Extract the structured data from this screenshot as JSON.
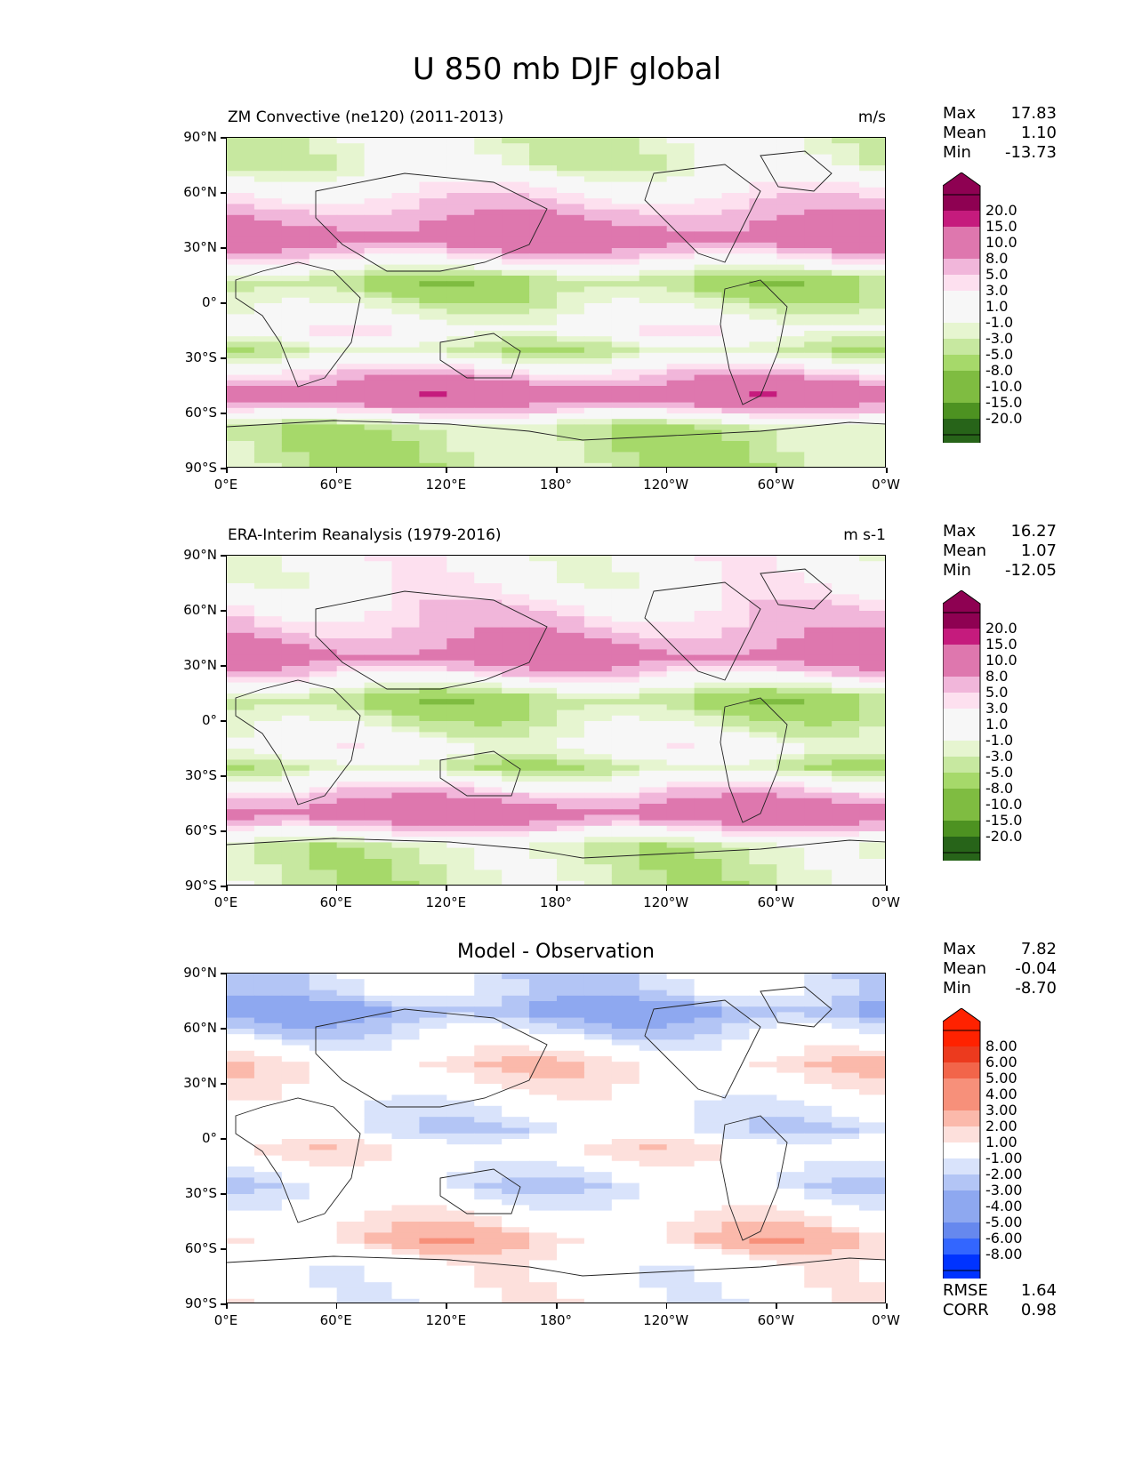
{
  "title": "U 850 mb DJF global",
  "axes": {
    "yticks": [
      "90°N",
      "60°N",
      "30°N",
      "0°",
      "30°S",
      "60°S",
      "90°S"
    ],
    "xticks": [
      "0°E",
      "60°E",
      "120°E",
      "180°",
      "120°W",
      "60°W",
      "0°W"
    ]
  },
  "colors": {
    "prgn": [
      "#276419",
      "#4d9221",
      "#7fbc41",
      "#a6d96a",
      "#c7e8a0",
      "#e6f5d0",
      "#f7f7f7",
      "#fde0ef",
      "#f1b6da",
      "#de77ae",
      "#c51b7d",
      "#8e0152"
    ],
    "diff": [
      "#0033ff",
      "#3366ff",
      "#6688ee",
      "#8ea8f0",
      "#b3c5f5",
      "#d9e3fb",
      "#ffffff",
      "#fde0dc",
      "#fbb9ab",
      "#f7907a",
      "#f2654a",
      "#ec3a1e",
      "#ff2200"
    ]
  },
  "panels": [
    {
      "left_title": "ZM Convective (ne120) (2011-2013)",
      "right_title": "m/s",
      "stats": [
        {
          "label": "Max",
          "value": "17.83"
        },
        {
          "label": "Mean",
          "value": "1.10"
        },
        {
          "label": "Min",
          "value": "-13.73"
        }
      ],
      "colorbar_labels": [
        "20.0",
        "15.0",
        "10.0",
        "8.0",
        "5.0",
        "3.0",
        "1.0",
        "-1.0",
        "-3.0",
        "-5.0",
        "-8.0",
        "-10.0",
        "-15.0",
        "-20.0"
      ]
    },
    {
      "left_title": "ERA-Interim Reanalysis (1979-2016)",
      "right_title": "m s-1",
      "stats": [
        {
          "label": "Max",
          "value": "16.27"
        },
        {
          "label": "Mean",
          "value": "1.07"
        },
        {
          "label": "Min",
          "value": "-12.05"
        }
      ],
      "colorbar_labels": [
        "20.0",
        "15.0",
        "10.0",
        "8.0",
        "5.0",
        "3.0",
        "1.0",
        "-1.0",
        "-3.0",
        "-5.0",
        "-8.0",
        "-10.0",
        "-15.0",
        "-20.0"
      ]
    },
    {
      "center_title": "Model - Observation",
      "stats": [
        {
          "label": "Max",
          "value": "7.82"
        },
        {
          "label": "Mean",
          "value": "-0.04"
        },
        {
          "label": "Min",
          "value": "-8.70"
        }
      ],
      "colorbar_labels": [
        "8.00",
        "6.00",
        "5.00",
        "4.00",
        "3.00",
        "2.00",
        "1.00",
        "-1.00",
        "-2.00",
        "-3.00",
        "-4.00",
        "-5.00",
        "-6.00",
        "-8.00"
      ],
      "metrics": [
        {
          "label": "RMSE",
          "value": "1.64"
        },
        {
          "label": "CORR",
          "value": "0.98"
        }
      ]
    }
  ],
  "chart_data": [
    {
      "type": "heatmap",
      "title": "ZM Convective (ne120) (2011-2013)",
      "units": "m/s",
      "x_range": [
        0,
        360
      ],
      "y_range": [
        -90,
        90
      ],
      "levels": [
        -20,
        -15,
        -10,
        -8,
        -5,
        -3,
        -1,
        1,
        3,
        5,
        8,
        10,
        15,
        20
      ],
      "zonal_bands": [
        {
          "lat": 75,
          "value": -2
        },
        {
          "lat": 45,
          "value": 8
        },
        {
          "lat": 35,
          "value": 12
        },
        {
          "lat": 12,
          "value": -6
        },
        {
          "lat": 0,
          "value": -3
        },
        {
          "lat": -15,
          "value": 2
        },
        {
          "lat": -25,
          "value": -4
        },
        {
          "lat": -50,
          "value": 13
        },
        {
          "lat": -68,
          "value": -4
        }
      ],
      "max": 17.83,
      "mean": 1.1,
      "min": -13.73
    },
    {
      "type": "heatmap",
      "title": "ERA-Interim Reanalysis (1979-2016)",
      "units": "m s-1",
      "x_range": [
        0,
        360
      ],
      "y_range": [
        -90,
        90
      ],
      "levels": [
        -20,
        -15,
        -10,
        -8,
        -5,
        -3,
        -1,
        1,
        3,
        5,
        8,
        10,
        15,
        20
      ],
      "zonal_bands": [
        {
          "lat": 75,
          "value": 1
        },
        {
          "lat": 45,
          "value": 7
        },
        {
          "lat": 35,
          "value": 11
        },
        {
          "lat": 12,
          "value": -6
        },
        {
          "lat": 0,
          "value": -3
        },
        {
          "lat": -15,
          "value": 1
        },
        {
          "lat": -25,
          "value": -4
        },
        {
          "lat": -50,
          "value": 12
        },
        {
          "lat": -68,
          "value": -3
        }
      ],
      "max": 16.27,
      "mean": 1.07,
      "min": -12.05
    },
    {
      "type": "heatmap",
      "title": "Model - Observation",
      "x_range": [
        0,
        360
      ],
      "y_range": [
        -90,
        90
      ],
      "levels": [
        -8,
        -6,
        -5,
        -4,
        -3,
        -2,
        -1,
        1,
        2,
        3,
        4,
        5,
        6,
        8
      ],
      "zonal_bands": [
        {
          "lat": 80,
          "value": -1.5
        },
        {
          "lat": 70,
          "value": -3.5
        },
        {
          "lat": 40,
          "value": 1.5
        },
        {
          "lat": 5,
          "value": -1.5
        },
        {
          "lat": -5,
          "value": 1
        },
        {
          "lat": -25,
          "value": -1.5
        },
        {
          "lat": -55,
          "value": 2
        },
        {
          "lat": -70,
          "value": 0
        }
      ],
      "max": 7.82,
      "mean": -0.04,
      "min": -8.7,
      "rmse": 1.64,
      "corr": 0.98
    }
  ]
}
